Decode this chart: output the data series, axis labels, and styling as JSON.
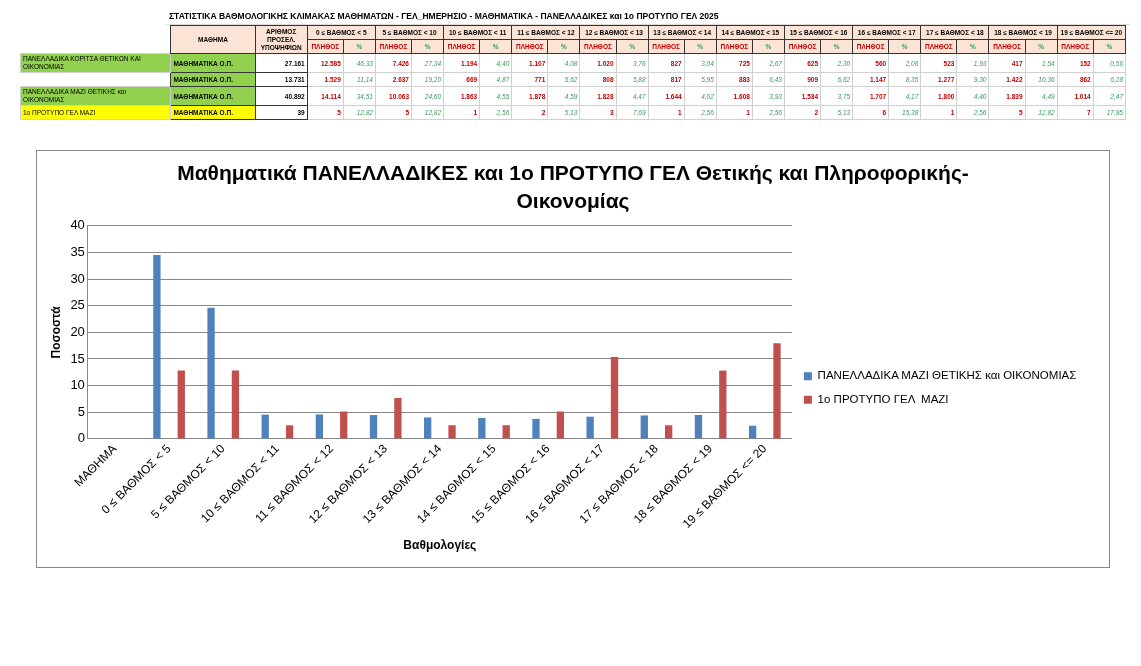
{
  "chart_data": [
    {
      "type": "other",
      "title": "ΣΤΑΤΙΣΤΙΚΑ ΒΑΘΜΟΛΟΓΙΚΗΣ ΚΛΙΜΑΚΑΣ ΜΑΘΗΜΑΤΩΝ - ΓΕΛ_ΗΜΕΡΗΣΙΟ - ΜΑΘΗΜΑΤΙΚΑ - ΠΑΝΕΛΛΑΔΙΚΕΣ και 1ο ΠΡΟΤΥΠΟ ΓΕΛ 2025",
      "annotations": [
        "ΜΑΘΗΜΑ",
        "ΑΡΙΘΜΟΣ ΠΡΟΣΕΛ. ΥΠΟΨΗΦΙΩΝ",
        "0 ≤ ΒΑΘΜΟΣ < 5",
        "5 ≤ ΒΑΘΜΟΣ < 10",
        "10 ≤ ΒΑΘΜΟΣ < 11",
        "11 ≤ ΒΑΘΜΟΣ < 12",
        "12 ≤ ΒΑΘΜΟΣ < 13",
        "13 ≤ ΒΑΘΜΟΣ < 14",
        "14 ≤ ΒΑΘΜΟΣ < 15",
        "15 ≤ ΒΑΘΜΟΣ < 16",
        "16 ≤ ΒΑΘΜΟΣ < 17",
        "17 ≤ ΒΑΘΜΟΣ < 18",
        "18 ≤ ΒΑΘΜΟΣ < 19",
        "19 ≤ ΒΑΘΜΟΣ <= 20",
        "ΠΛΗΘΟΣ",
        "%",
        "ΠΛΗΘΟΣ",
        "%",
        "ΠΛΗΘΟΣ",
        "%",
        "ΠΛΗΘΟΣ",
        "%",
        "ΠΛΗΘΟΣ",
        "%",
        "ΠΛΗΘΟΣ",
        "%",
        "ΠΛΗΘΟΣ",
        "%",
        "ΠΛΗΘΟΣ",
        "%",
        "ΠΛΗΘΟΣ",
        "%",
        "ΠΛΗΘΟΣ",
        "%",
        "ΠΛΗΘΟΣ",
        "%",
        "ΠΛΗΘΟΣ",
        "%",
        "ΠΑΝΕΛΛΑΔΙΚΑ ΚΟΡΙΤΣΑ ΘΕΤΙΚΩΝ ΚΑΙ ΟΙΚΟΝΟΜΙΑΣ",
        "ΜΑΘΗΜΑΤΙΚΑ Ο.Π.",
        "27.161",
        "12.585",
        "46,33",
        "7.426",
        "27,34",
        "1.194",
        "4,40",
        "1.107",
        "4,08",
        "1.020",
        "3,76",
        "827",
        "3,04",
        "725",
        "2,67",
        "625",
        "2,30",
        "560",
        "2,06",
        "523",
        "1,93",
        "417",
        "1,54",
        "152",
        "0,56",
        null,
        "ΜΑΘΗΜΑΤΙΚΑ Ο.Π.",
        "13.731",
        "1.529",
        "11,14",
        "2.637",
        "19,20",
        "669",
        "4,87",
        "771",
        "5,62",
        "808",
        "5,88",
        "817",
        "5,95",
        "883",
        "6,43",
        "909",
        "6,62",
        "1.147",
        "8,35",
        "1.277",
        "9,30",
        "1.422",
        "10,36",
        "862",
        "6,28",
        "ΠΑΝΕΛΛΑΔΙΚΑ ΜΑΖΙ ΘΕΤΙΚΗΣ και ΟΙΚΟΝΟΜΙΑΣ",
        "ΜΑΘΗΜΑΤΙΚΑ Ο.Π.",
        "40.892",
        "14.114",
        "34,51",
        "10.063",
        "24,60",
        "1.863",
        "4,55",
        "1.878",
        "4,59",
        "1.828",
        "4,47",
        "1.644",
        "4,02",
        "1.608",
        "3,93",
        "1.534",
        "3,75",
        "1.707",
        "4,17",
        "1.800",
        "4,40",
        "1.839",
        "4,49",
        "1.014",
        "2,47",
        "1ο ΠΡΟΤΥΠΟ ΓΕΛ  ΜΑΖΙ",
        "ΜΑΘΗΜΑΤΙΚΑ Ο.Π.",
        "39",
        "5",
        "12,82",
        "5",
        "12,82",
        "1",
        "2,56",
        "2",
        "5,13",
        "3",
        "7,69",
        "1",
        "2,56",
        "1",
        "2,56",
        "2",
        "5,13",
        "6",
        "15,38",
        "1",
        "2,56",
        "5",
        "12,82",
        "7",
        "17,95"
      ]
    },
    {
      "type": "bar",
      "title": "Μαθηματικά ΠΑΝΕΛΛΑΔΙΚΕΣ και 1ο ΠΡΟΤΥΠΟ ΓΕΛ Θετικής και Πληροφορικής-Οικονομίας",
      "xlabel": "Βαθμολογίες",
      "ylabel": "Ποσοστά",
      "categories": [
        "ΜΑΘΗΜΑ",
        "0 ≤ ΒΑΘΜΟΣ < 5",
        "5 ≤ ΒΑΘΜΟΣ < 10",
        "10 ≤ ΒΑΘΜΟΣ < 11",
        "11 ≤ ΒΑΘΜΟΣ < 12",
        "12 ≤ ΒΑΘΜΟΣ < 13",
        "13 ≤ ΒΑΘΜΟΣ < 14",
        "14 ≤ ΒΑΘΜΟΣ < 15",
        "15 ≤ ΒΑΘΜΟΣ < 16",
        "16 ≤ ΒΑΘΜΟΣ < 17",
        "17 ≤ ΒΑΘΜΟΣ < 18",
        "18 ≤ ΒΑΘΜΟΣ < 19",
        "19 ≤ ΒΑΘΜΟΣ <= 20"
      ],
      "series": [
        {
          "name": "ΠΑΝΕΛΛΑΔΙΚΑ ΜΑΖΙ ΘΕΤΙΚΗΣ και ΟΙΚΟΝΟΜΙΑΣ",
          "color": "#4f81bd",
          "values": [
            null,
            34.51,
            24.6,
            4.55,
            4.59,
            4.47,
            4.02,
            3.93,
            3.75,
            4.17,
            4.4,
            4.49,
            2.47
          ]
        },
        {
          "name": "1ο ΠΡΟΤΥΠΟ ΓΕΛ  ΜΑΖΙ",
          "color": "#c0504d",
          "values": [
            null,
            12.82,
            12.82,
            2.56,
            5.13,
            7.69,
            2.56,
            2.56,
            5.13,
            15.38,
            2.56,
            12.82,
            17.95
          ]
        }
      ],
      "ylim": [
        0,
        40
      ],
      "yticks": [
        0,
        5,
        10,
        15,
        20,
        25,
        30,
        35,
        40
      ],
      "grid": "y",
      "legend": "right"
    }
  ]
}
